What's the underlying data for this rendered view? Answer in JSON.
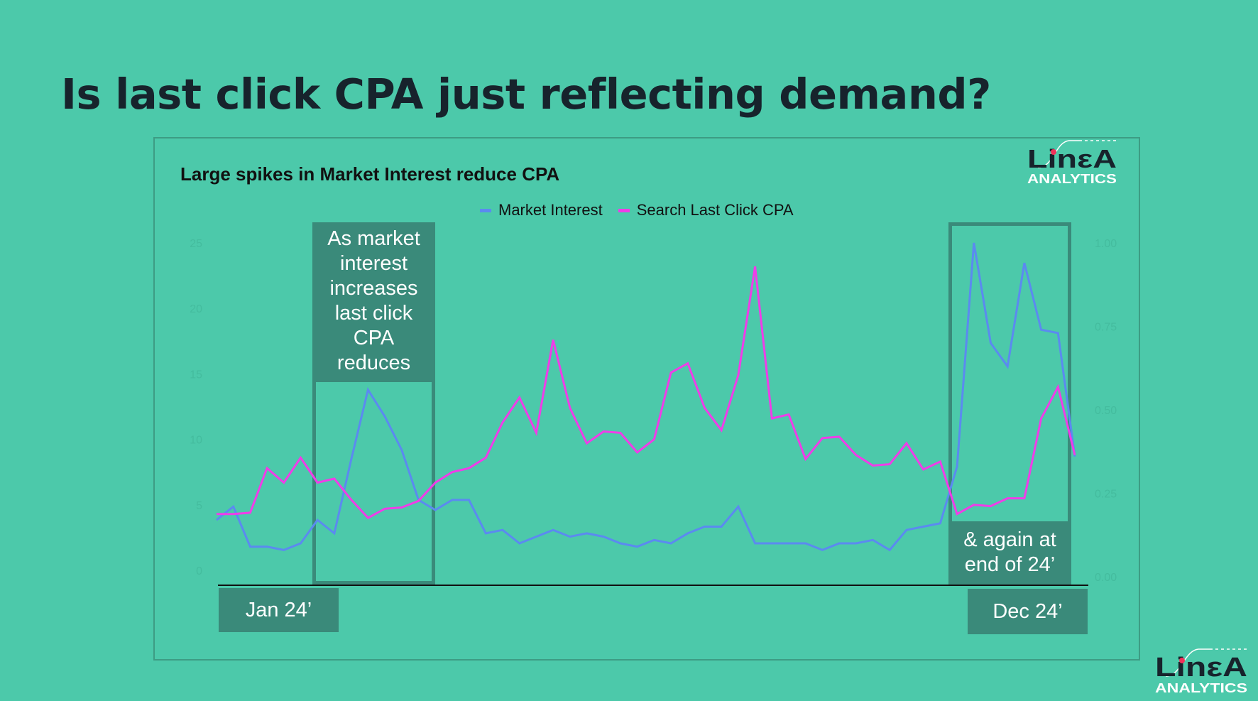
{
  "title": "Is last click CPA just reflecting demand?",
  "logo": {
    "word": "LinεA",
    "sub": "ANALYTICS"
  },
  "chart_data": {
    "type": "line",
    "title": "Large spikes in Market Interest reduce CPA",
    "legend_position": "top",
    "grid": false,
    "x_start_label": "Jan 24’",
    "x_end_label": "Dec 24’",
    "y_left": {
      "range": [
        0,
        25
      ],
      "ticks": [
        "0",
        "5",
        "10",
        "15",
        "20",
        "25"
      ]
    },
    "y_right": {
      "range": [
        0,
        1
      ],
      "ticks": [
        "0.00",
        "0.25",
        "0.50",
        "0.75",
        "1.00"
      ]
    },
    "series": [
      {
        "name": "Market Interest",
        "axis": "right",
        "color": "#5b8af0",
        "values": [
          0.17,
          0.21,
          0.09,
          0.09,
          0.08,
          0.1,
          0.17,
          0.13,
          0.35,
          0.56,
          0.48,
          0.38,
          0.23,
          0.2,
          0.23,
          0.23,
          0.13,
          0.14,
          0.1,
          0.12,
          0.14,
          0.12,
          0.13,
          0.12,
          0.1,
          0.09,
          0.11,
          0.1,
          0.13,
          0.15,
          0.15,
          0.21,
          0.1,
          0.1,
          0.1,
          0.1,
          0.08,
          0.1,
          0.1,
          0.11,
          0.08,
          0.14,
          0.15,
          0.16,
          0.33,
          1.0,
          0.7,
          0.63,
          0.94,
          0.74,
          0.73,
          0.36
        ]
      },
      {
        "name": "Search Last Click CPA",
        "axis": "left",
        "color": "#f03ce8",
        "values": [
          4.3,
          4.3,
          4.4,
          7.8,
          6.7,
          8.6,
          6.7,
          7.0,
          5.4,
          4.0,
          4.7,
          4.8,
          5.3,
          6.7,
          7.5,
          7.8,
          8.6,
          11.3,
          13.2,
          10.5,
          17.6,
          12.4,
          9.7,
          10.6,
          10.5,
          9.0,
          10.0,
          15.1,
          15.8,
          12.4,
          10.7,
          14.9,
          23.2,
          11.6,
          11.9,
          8.5,
          10.1,
          10.2,
          8.8,
          8.0,
          8.1,
          9.7,
          7.7,
          8.3,
          4.3,
          5.0,
          4.9,
          5.5,
          5.5,
          11.6,
          14.0,
          8.8
        ]
      }
    ],
    "annotations": [
      {
        "text": "As market interest increases last click CPA reduces",
        "lines": [
          "As market",
          "interest",
          "increases",
          "last click",
          "CPA",
          "reduces"
        ]
      },
      {
        "text": "& again at end of 24’",
        "lines": [
          "& again at",
          "end of 24’"
        ]
      }
    ]
  },
  "colors": {
    "background": "#4cc9aa",
    "annotation": "#3a8a7a",
    "title": "#17232c"
  }
}
